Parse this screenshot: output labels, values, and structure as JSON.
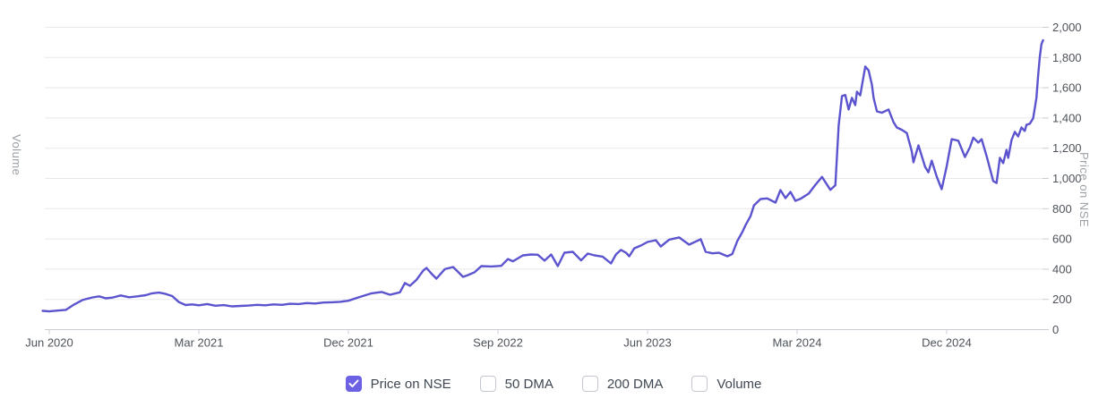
{
  "chart_data": {
    "type": "line",
    "title": "",
    "yaxis_right": {
      "title": "Price on NSE",
      "min": 0,
      "max": 2000,
      "tick_step": 200,
      "tick_labels": [
        "0",
        "200",
        "400",
        "600",
        "800",
        "1,000",
        "1,200",
        "1,400",
        "1,600",
        "1,800",
        "2,000"
      ]
    },
    "yaxis_left": {
      "title": "Volume"
    },
    "xaxis": {
      "tick_labels": [
        "Jun 2020",
        "Mar 2021",
        "Dec 2021",
        "Sep 2022",
        "Jun 2023",
        "Mar 2024",
        "Dec 2024"
      ],
      "months_between_ticks": 9,
      "x_unit": "months after Jun 2020"
    },
    "grid": true,
    "legend_position": "bottom",
    "series": [
      {
        "name": "Price on NSE",
        "color": "#5c54cf",
        "points": [
          [
            -0.4,
            124
          ],
          [
            0,
            121
          ],
          [
            0.5,
            126
          ],
          [
            1,
            131
          ],
          [
            1.5,
            166
          ],
          [
            2,
            196
          ],
          [
            2.6,
            213
          ],
          [
            3,
            220
          ],
          [
            3.4,
            207
          ],
          [
            3.8,
            212
          ],
          [
            4.3,
            226
          ],
          [
            4.8,
            214
          ],
          [
            5.3,
            220
          ],
          [
            5.8,
            228
          ],
          [
            6.2,
            240
          ],
          [
            6.6,
            245
          ],
          [
            7,
            236
          ],
          [
            7.4,
            222
          ],
          [
            7.8,
            182
          ],
          [
            8.2,
            163
          ],
          [
            8.6,
            167
          ],
          [
            9,
            161
          ],
          [
            9.5,
            169
          ],
          [
            10,
            158
          ],
          [
            10.5,
            162
          ],
          [
            11,
            154
          ],
          [
            11.5,
            157
          ],
          [
            12,
            159
          ],
          [
            12.5,
            164
          ],
          [
            13,
            161
          ],
          [
            13.5,
            167
          ],
          [
            14,
            164
          ],
          [
            14.5,
            171
          ],
          [
            15,
            169
          ],
          [
            15.5,
            176
          ],
          [
            16,
            173
          ],
          [
            16.5,
            179
          ],
          [
            17,
            181
          ],
          [
            17.5,
            184
          ],
          [
            18,
            191
          ],
          [
            18.6,
            213
          ],
          [
            19.4,
            240
          ],
          [
            20,
            249
          ],
          [
            20.5,
            231
          ],
          [
            21.1,
            247
          ],
          [
            21.4,
            308
          ],
          [
            21.7,
            290
          ],
          [
            22.1,
            330
          ],
          [
            22.5,
            390
          ],
          [
            22.7,
            408
          ],
          [
            23,
            370
          ],
          [
            23.3,
            337
          ],
          [
            23.8,
            400
          ],
          [
            24.3,
            414
          ],
          [
            24.9,
            349
          ],
          [
            25.2,
            361
          ],
          [
            25.6,
            380
          ],
          [
            26,
            420
          ],
          [
            26.6,
            418
          ],
          [
            27.2,
            422
          ],
          [
            27.6,
            467
          ],
          [
            27.9,
            452
          ],
          [
            28.5,
            491
          ],
          [
            29,
            497
          ],
          [
            29.4,
            495
          ],
          [
            29.8,
            456
          ],
          [
            30.2,
            497
          ],
          [
            30.6,
            420
          ],
          [
            31,
            509
          ],
          [
            31.5,
            515
          ],
          [
            32,
            458
          ],
          [
            32.4,
            503
          ],
          [
            32.8,
            492
          ],
          [
            33.3,
            483
          ],
          [
            33.8,
            438
          ],
          [
            34.1,
            497
          ],
          [
            34.4,
            527
          ],
          [
            34.7,
            509
          ],
          [
            34.9,
            485
          ],
          [
            35.2,
            538
          ],
          [
            35.6,
            556
          ],
          [
            36,
            580
          ],
          [
            36.5,
            592
          ],
          [
            36.8,
            550
          ],
          [
            37.3,
            595
          ],
          [
            37.9,
            610
          ],
          [
            38.5,
            562
          ],
          [
            39.2,
            598
          ],
          [
            39.5,
            515
          ],
          [
            39.9,
            505
          ],
          [
            40.3,
            508
          ],
          [
            40.8,
            485
          ],
          [
            41.1,
            500
          ],
          [
            41.4,
            586
          ],
          [
            41.7,
            645
          ],
          [
            41.9,
            692
          ],
          [
            42.2,
            751
          ],
          [
            42.4,
            822
          ],
          [
            42.8,
            864
          ],
          [
            43.2,
            868
          ],
          [
            43.7,
            840
          ],
          [
            44,
            923
          ],
          [
            44.3,
            870
          ],
          [
            44.6,
            911
          ],
          [
            44.9,
            852
          ],
          [
            45.2,
            865
          ],
          [
            45.7,
            900
          ],
          [
            46.1,
            958
          ],
          [
            46.5,
            1010
          ],
          [
            47,
            925
          ],
          [
            47.3,
            955
          ],
          [
            47.5,
            1350
          ],
          [
            47.7,
            1545
          ],
          [
            47.9,
            1552
          ],
          [
            48.1,
            1456
          ],
          [
            48.3,
            1533
          ],
          [
            48.5,
            1485
          ],
          [
            48.6,
            1574
          ],
          [
            48.8,
            1550
          ],
          [
            49.1,
            1740
          ],
          [
            49.3,
            1715
          ],
          [
            49.5,
            1621
          ],
          [
            49.6,
            1533
          ],
          [
            49.8,
            1444
          ],
          [
            50.1,
            1435
          ],
          [
            50.5,
            1456
          ],
          [
            50.8,
            1373
          ],
          [
            51,
            1337
          ],
          [
            51.3,
            1322
          ],
          [
            51.6,
            1300
          ],
          [
            51.9,
            1180
          ],
          [
            52,
            1107
          ],
          [
            52.3,
            1219
          ],
          [
            52.7,
            1077
          ],
          [
            52.9,
            1041
          ],
          [
            53.1,
            1118
          ],
          [
            53.4,
            1012
          ],
          [
            53.7,
            929
          ],
          [
            54,
            1080
          ],
          [
            54.3,
            1260
          ],
          [
            54.7,
            1250
          ],
          [
            55.1,
            1142
          ],
          [
            55.4,
            1207
          ],
          [
            55.6,
            1270
          ],
          [
            55.9,
            1237
          ],
          [
            56.1,
            1260
          ],
          [
            56.4,
            1150
          ],
          [
            56.8,
            982
          ],
          [
            57,
            970
          ],
          [
            57.2,
            1136
          ],
          [
            57.4,
            1101
          ],
          [
            57.6,
            1189
          ],
          [
            57.7,
            1136
          ],
          [
            57.9,
            1254
          ],
          [
            58.1,
            1308
          ],
          [
            58.3,
            1278
          ],
          [
            58.5,
            1337
          ],
          [
            58.7,
            1314
          ],
          [
            58.8,
            1355
          ],
          [
            59,
            1362
          ],
          [
            59.2,
            1397
          ],
          [
            59.3,
            1462
          ],
          [
            59.4,
            1533
          ],
          [
            59.5,
            1680
          ],
          [
            59.6,
            1800
          ],
          [
            59.7,
            1888
          ],
          [
            59.8,
            1914
          ]
        ]
      }
    ]
  },
  "legend": {
    "items": [
      {
        "label": "Price on NSE",
        "checked": true
      },
      {
        "label": "50 DMA",
        "checked": false
      },
      {
        "label": "200 DMA",
        "checked": false
      },
      {
        "label": "Volume",
        "checked": false
      }
    ]
  },
  "colors": {
    "accent": "#6c61e4",
    "line": "#5c54cf",
    "grid": "#e8e8e8",
    "axis": "#c9ccd1",
    "tick_text": "#4e5359",
    "axis_title_text": "#9aa0a6",
    "legend_text": "#3f4752",
    "checkbox_border": "#c2c7cf"
  }
}
